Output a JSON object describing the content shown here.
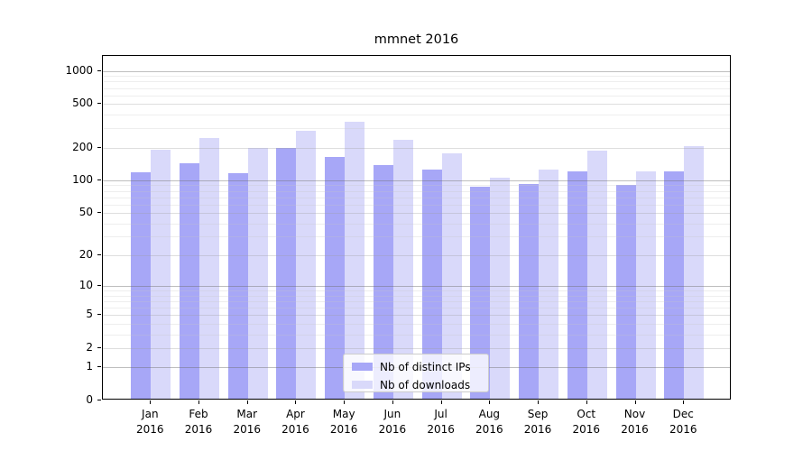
{
  "chart_data": {
    "type": "bar",
    "title": "mmnet 2016",
    "categories": [
      "Jan",
      "Feb",
      "Mar",
      "Apr",
      "May",
      "Jun",
      "Jul",
      "Aug",
      "Sep",
      "Oct",
      "Nov",
      "Dec"
    ],
    "year_label": "2016",
    "series": [
      {
        "name": "Nb of distinct IPs",
        "color": "#a7a7f7",
        "values": [
          115,
          137,
          113,
          190,
          157,
          132,
          120,
          84,
          89,
          117,
          87,
          117
        ]
      },
      {
        "name": "Nb of downloads",
        "color": "#d9d9fa",
        "values": [
          185,
          235,
          190,
          275,
          330,
          225,
          170,
          101,
          120,
          180,
          117,
          200
        ]
      }
    ],
    "xlabel": "",
    "ylabel": "",
    "yscale": "log1p",
    "ylim": [
      0,
      1372
    ],
    "y_ticks": [
      0,
      1,
      2,
      5,
      10,
      20,
      50,
      100,
      200,
      500,
      1000
    ],
    "y_minor_gridlines": [
      3,
      4,
      6,
      7,
      8,
      9,
      30,
      40,
      60,
      70,
      80,
      90,
      300,
      400,
      600,
      700,
      800,
      900
    ],
    "grid": true,
    "legend_position": "lower center inside plot",
    "colors": {
      "decade_gridline": "#bcbcbc",
      "sub_gridline": "#dcdcdc",
      "minor_gridline": "#ededed",
      "axis_spine": "#000000",
      "legend_border": "#cccccc"
    }
  }
}
